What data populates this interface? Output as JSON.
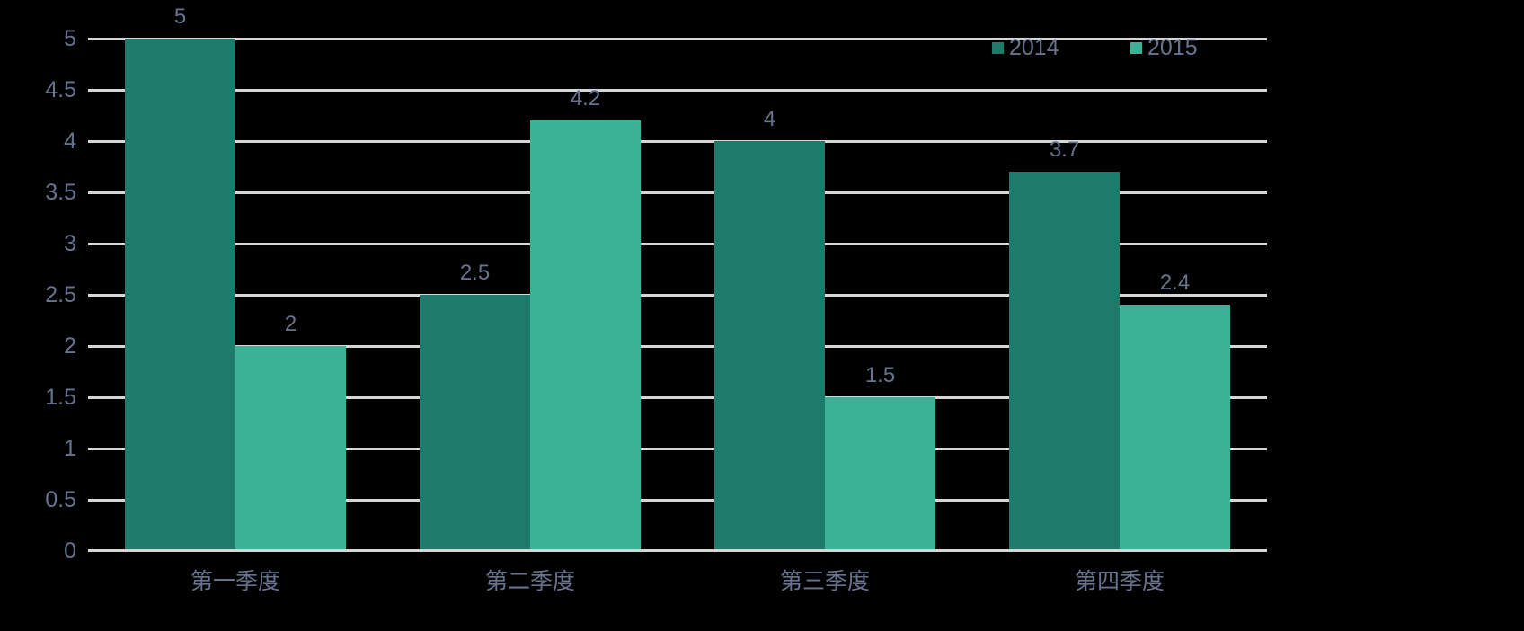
{
  "chart_data": {
    "type": "bar",
    "title": "",
    "categories": [
      "第一季度",
      "第二季度",
      "第三季度",
      "第四季度"
    ],
    "series": [
      {
        "name": "2014",
        "color": "#1e7b6a",
        "values": [
          5,
          2.5,
          4,
          3.7
        ]
      },
      {
        "name": "2015",
        "color": "#3bb295",
        "values": [
          2,
          4.2,
          1.5,
          2.4
        ]
      }
    ],
    "value_labels": [
      [
        "5",
        "2.5",
        "4",
        "3.7"
      ],
      [
        "2",
        "4.2",
        "1.5",
        "2.4"
      ]
    ],
    "xlabel": "",
    "ylabel": "",
    "ylim": [
      0,
      5
    ],
    "y_ticks": [
      "5",
      "4.5",
      "4",
      "3.5",
      "3",
      "2.5",
      "2",
      "1.5",
      "1",
      "0.5",
      "0"
    ],
    "grid": true,
    "legend_position": "top-right",
    "legend_items": [
      "2014",
      "2015"
    ]
  },
  "colors": {
    "background": "#000000",
    "text": "#67738e",
    "gridline": "#d6d6d6",
    "series_2014": "#1e7b6a",
    "series_2015": "#3bb295"
  }
}
